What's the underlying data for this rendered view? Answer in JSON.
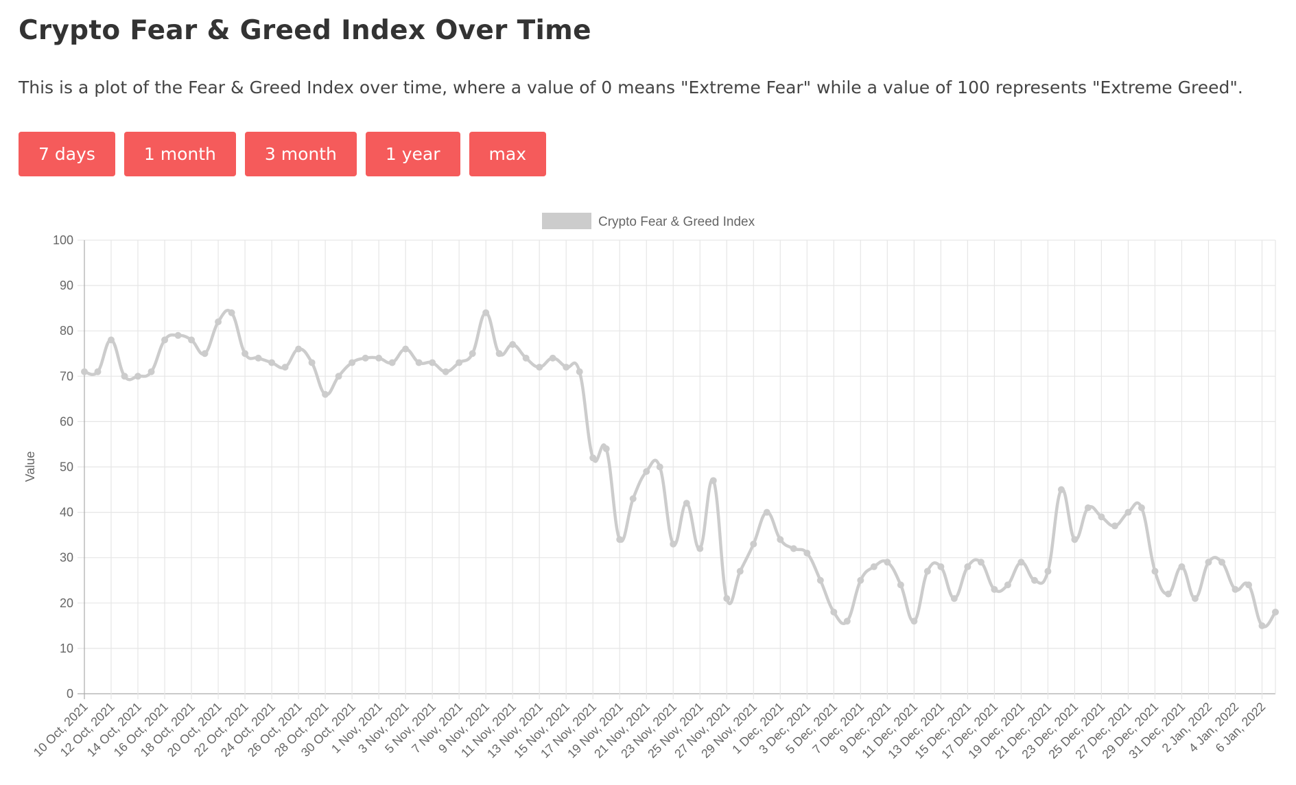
{
  "header": {
    "title": "Crypto Fear & Greed Index Over Time",
    "description": "This is a plot of the Fear & Greed Index over time, where a value of 0 means \"Extreme Fear\" while a value of 100 represents \"Extreme Greed\"."
  },
  "range_buttons": [
    {
      "label": "7 days"
    },
    {
      "label": "1 month"
    },
    {
      "label": "3 month"
    },
    {
      "label": "1 year"
    },
    {
      "label": "max"
    }
  ],
  "colors": {
    "button_bg": "#f55b5b",
    "button_text": "#ffffff",
    "line": "#cccccc",
    "grid": "#e6e6e6",
    "axis": "#aaaaaa"
  },
  "chart_data": {
    "type": "line",
    "ylabel": "Value",
    "ylim": [
      0,
      100
    ],
    "yticks": [
      0,
      10,
      20,
      30,
      40,
      50,
      60,
      70,
      80,
      90,
      100
    ],
    "grid": true,
    "legend_position": "top-center",
    "x_tick_labels": [
      "10 Oct, 2021",
      "12 Oct, 2021",
      "14 Oct, 2021",
      "16 Oct, 2021",
      "18 Oct, 2021",
      "20 Oct, 2021",
      "22 Oct, 2021",
      "24 Oct, 2021",
      "26 Oct, 2021",
      "28 Oct, 2021",
      "30 Oct, 2021",
      "1 Nov, 2021",
      "3 Nov, 2021",
      "5 Nov, 2021",
      "7 Nov, 2021",
      "9 Nov, 2021",
      "11 Nov, 2021",
      "13 Nov, 2021",
      "15 Nov, 2021",
      "17 Nov, 2021",
      "19 Nov, 2021",
      "21 Nov, 2021",
      "23 Nov, 2021",
      "25 Nov, 2021",
      "27 Nov, 2021",
      "29 Nov, 2021",
      "1 Dec, 2021",
      "3 Dec, 2021",
      "5 Dec, 2021",
      "7 Dec, 2021",
      "9 Dec, 2021",
      "11 Dec, 2021",
      "13 Dec, 2021",
      "15 Dec, 2021",
      "17 Dec, 2021",
      "19 Dec, 2021",
      "21 Dec, 2021",
      "23 Dec, 2021",
      "25 Dec, 2021",
      "27 Dec, 2021",
      "29 Dec, 2021",
      "31 Dec, 2021",
      "2 Jan, 2022",
      "4 Jan, 2022",
      "6 Jan, 2022"
    ],
    "series": [
      {
        "name": "Crypto Fear & Greed Index",
        "x": [
          "2021-10-10",
          "2021-10-11",
          "2021-10-12",
          "2021-10-13",
          "2021-10-14",
          "2021-10-15",
          "2021-10-16",
          "2021-10-17",
          "2021-10-18",
          "2021-10-19",
          "2021-10-20",
          "2021-10-21",
          "2021-10-22",
          "2021-10-23",
          "2021-10-24",
          "2021-10-25",
          "2021-10-26",
          "2021-10-27",
          "2021-10-28",
          "2021-10-29",
          "2021-10-30",
          "2021-10-31",
          "2021-11-01",
          "2021-11-02",
          "2021-11-03",
          "2021-11-04",
          "2021-11-05",
          "2021-11-06",
          "2021-11-07",
          "2021-11-08",
          "2021-11-09",
          "2021-11-10",
          "2021-11-11",
          "2021-11-12",
          "2021-11-13",
          "2021-11-14",
          "2021-11-15",
          "2021-11-16",
          "2021-11-17",
          "2021-11-18",
          "2021-11-19",
          "2021-11-20",
          "2021-11-21",
          "2021-11-22",
          "2021-11-23",
          "2021-11-24",
          "2021-11-25",
          "2021-11-26",
          "2021-11-27",
          "2021-11-28",
          "2021-11-29",
          "2021-11-30",
          "2021-12-01",
          "2021-12-02",
          "2021-12-03",
          "2021-12-04",
          "2021-12-05",
          "2021-12-06",
          "2021-12-07",
          "2021-12-08",
          "2021-12-09",
          "2021-12-10",
          "2021-12-11",
          "2021-12-12",
          "2021-12-13",
          "2021-12-14",
          "2021-12-15",
          "2021-12-16",
          "2021-12-17",
          "2021-12-18",
          "2021-12-19",
          "2021-12-20",
          "2021-12-21",
          "2021-12-22",
          "2021-12-23",
          "2021-12-24",
          "2021-12-25",
          "2021-12-26",
          "2021-12-27",
          "2021-12-28",
          "2021-12-29",
          "2021-12-30",
          "2021-12-31",
          "2022-01-01",
          "2022-01-02",
          "2022-01-03",
          "2022-01-04",
          "2022-01-05",
          "2022-01-06",
          "2022-01-07"
        ],
        "values": [
          71,
          71,
          78,
          70,
          70,
          71,
          78,
          79,
          78,
          75,
          82,
          84,
          75,
          74,
          73,
          72,
          76,
          73,
          66,
          70,
          73,
          74,
          74,
          73,
          76,
          73,
          73,
          71,
          73,
          75,
          84,
          75,
          77,
          74,
          72,
          74,
          72,
          71,
          52,
          54,
          34,
          43,
          49,
          50,
          33,
          42,
          32,
          47,
          21,
          27,
          33,
          40,
          34,
          32,
          31,
          25,
          18,
          16,
          25,
          28,
          29,
          24,
          16,
          27,
          28,
          21,
          28,
          29,
          23,
          24,
          29,
          25,
          27,
          45,
          34,
          41,
          39,
          37,
          40,
          41,
          27,
          22,
          28,
          21,
          29,
          29,
          23,
          24,
          15,
          18
        ]
      }
    ]
  }
}
